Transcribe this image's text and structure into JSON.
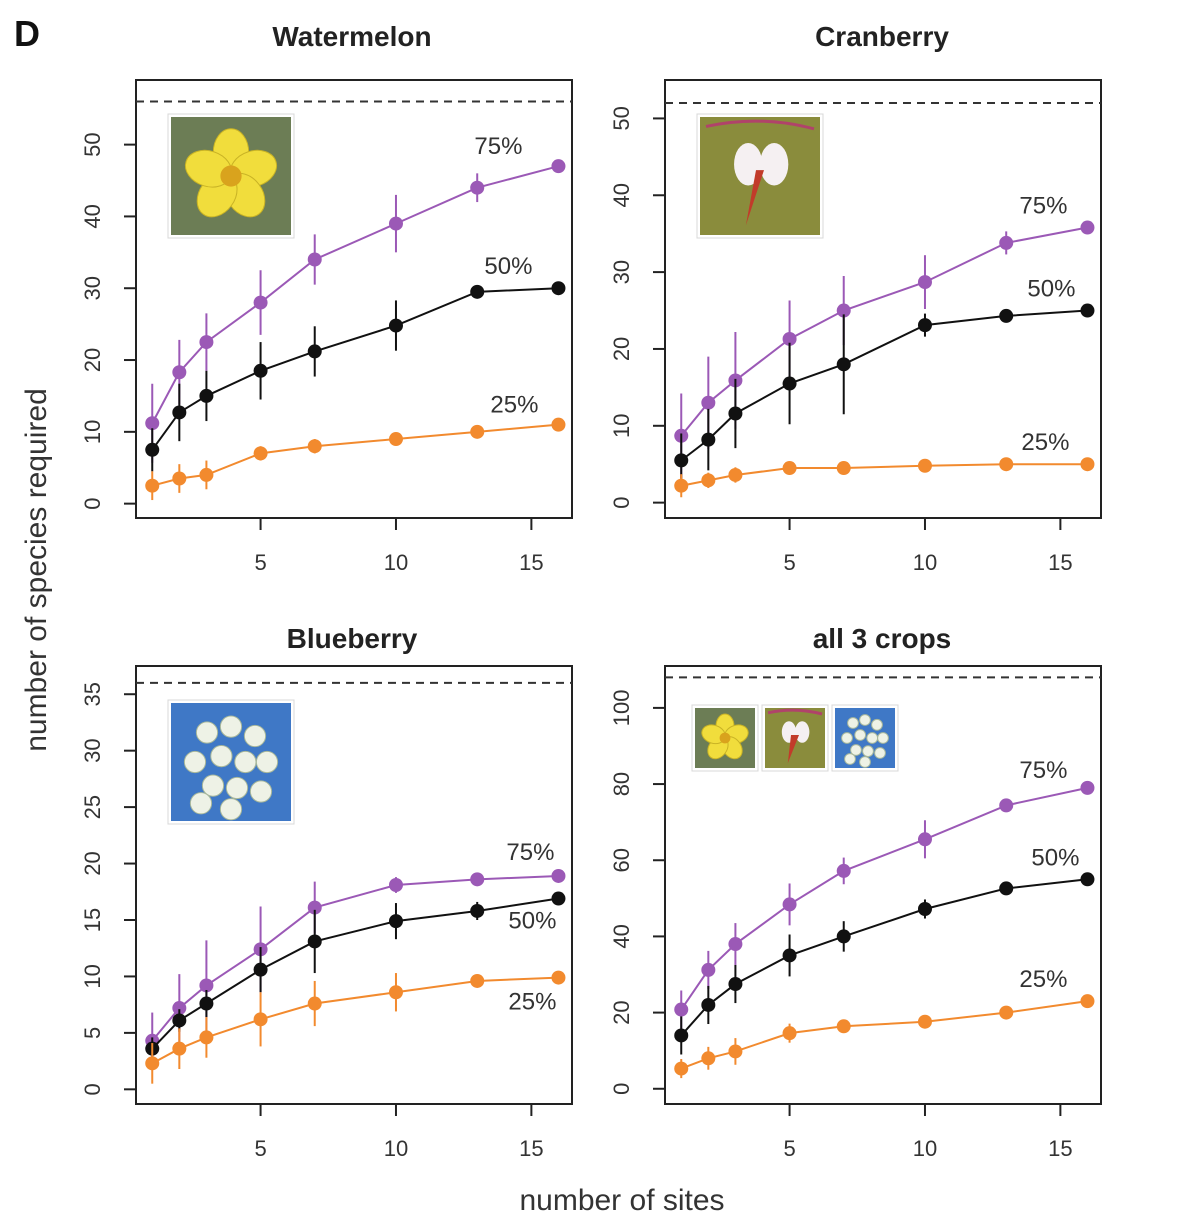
{
  "panel_letter": "D",
  "xlabel": "number of sites",
  "ylabel": "number of species required",
  "colors": {
    "75%": "#9b59b6",
    "50%": "#111111",
    "25%": "#f28a2e"
  },
  "chart_data": [
    {
      "type": "line",
      "title": "Watermelon",
      "flower_icons": [
        "watermelon-flower"
      ],
      "x": [
        1,
        2,
        3,
        5,
        7,
        10,
        13,
        16
      ],
      "xticks": [
        5,
        10,
        15
      ],
      "xlim": [
        0.4,
        16.5
      ],
      "yticks": [
        0,
        10,
        20,
        30,
        40,
        50
      ],
      "ylim": [
        -2,
        59
      ],
      "reference_line": 56,
      "series": [
        {
          "name": "75%",
          "values": [
            11.2,
            18.3,
            22.5,
            28,
            34,
            39,
            44,
            47
          ],
          "err_low": [
            5.5,
            4.5,
            4,
            4.5,
            3.5,
            4,
            2,
            0
          ],
          "err_high": [
            5.5,
            4.5,
            4,
            4.5,
            3.5,
            4,
            2,
            0
          ]
        },
        {
          "name": "50%",
          "values": [
            7.5,
            12.7,
            15,
            18.5,
            21.2,
            24.8,
            29.5,
            30
          ],
          "err_low": [
            3,
            4,
            3.5,
            4,
            3.5,
            3.5,
            0,
            0
          ],
          "err_high": [
            3,
            4,
            3.5,
            4,
            3.5,
            3.5,
            0,
            0
          ]
        },
        {
          "name": "25%",
          "values": [
            2.5,
            3.5,
            4,
            7,
            8,
            9,
            10,
            11
          ],
          "err_low": [
            2,
            2,
            2,
            1,
            1,
            0,
            0,
            0
          ],
          "err_high": [
            2,
            2,
            2,
            1,
            1,
            0,
            0,
            0
          ]
        }
      ]
    },
    {
      "type": "line",
      "title": "Cranberry",
      "flower_icons": [
        "cranberry-flower"
      ],
      "x": [
        1,
        2,
        3,
        5,
        7,
        10,
        13,
        16
      ],
      "xticks": [
        5,
        10,
        15
      ],
      "xlim": [
        0.4,
        16.5
      ],
      "yticks": [
        0,
        10,
        20,
        30,
        40,
        50
      ],
      "ylim": [
        -2,
        55
      ],
      "reference_line": 52,
      "series": [
        {
          "name": "75%",
          "values": [
            8.7,
            13,
            15.9,
            21.3,
            25,
            28.7,
            33.8,
            35.8
          ],
          "err_low": [
            5.5,
            6,
            6.3,
            5,
            4.5,
            3.5,
            1.5,
            0
          ],
          "err_high": [
            5.5,
            6,
            6.3,
            5,
            4.5,
            3.5,
            1.5,
            0
          ]
        },
        {
          "name": "50%",
          "values": [
            5.5,
            8.2,
            11.6,
            15.5,
            18,
            23.1,
            24.3,
            25
          ],
          "err_low": [
            3.5,
            4,
            4.5,
            5.3,
            6.5,
            1.5,
            0,
            0
          ],
          "err_high": [
            3.5,
            4,
            4.5,
            5.3,
            6.5,
            1.5,
            0,
            0
          ]
        },
        {
          "name": "25%",
          "values": [
            2.2,
            2.9,
            3.6,
            4.5,
            4.5,
            4.8,
            5,
            5
          ],
          "err_low": [
            1.5,
            1,
            1,
            0,
            0,
            0,
            0,
            0
          ],
          "err_high": [
            1.5,
            1,
            1,
            0,
            0,
            0,
            0,
            0
          ]
        }
      ]
    },
    {
      "type": "line",
      "title": "Blueberry",
      "flower_icons": [
        "blueberry-flower"
      ],
      "x": [
        1,
        2,
        3,
        5,
        7,
        10,
        13,
        16
      ],
      "xticks": [
        5,
        10,
        15
      ],
      "xlim": [
        0.4,
        16.5
      ],
      "yticks": [
        0,
        5,
        10,
        15,
        20,
        25,
        30,
        35
      ],
      "ylim": [
        -1.3,
        37.5
      ],
      "reference_line": 36,
      "series": [
        {
          "name": "75%",
          "values": [
            4.3,
            7.2,
            9.2,
            12.4,
            16.1,
            18.1,
            18.6,
            18.9
          ],
          "err_low": [
            2.5,
            3,
            4,
            3.8,
            2.3,
            0.7,
            0,
            0
          ],
          "err_high": [
            2.5,
            3,
            4,
            3.8,
            2.3,
            0.7,
            0,
            0
          ]
        },
        {
          "name": "50%",
          "values": [
            3.6,
            6.1,
            7.6,
            10.6,
            13.1,
            14.9,
            15.8,
            16.9
          ],
          "err_low": [
            1,
            1,
            1.2,
            2,
            2.8,
            1.6,
            0.8,
            0
          ],
          "err_high": [
            1,
            1,
            1.2,
            2,
            2.8,
            1.6,
            0.8,
            0
          ]
        },
        {
          "name": "25%",
          "values": [
            2.3,
            3.6,
            4.6,
            6.2,
            7.6,
            8.6,
            9.6,
            9.9
          ],
          "err_low": [
            1.8,
            1.8,
            1.8,
            2.4,
            2,
            1.7,
            0,
            0
          ],
          "err_high": [
            1.8,
            1.8,
            1.8,
            2.4,
            2,
            1.7,
            0,
            0
          ]
        }
      ]
    },
    {
      "type": "line",
      "title": "all 3 crops",
      "flower_icons": [
        "watermelon-flower",
        "cranberry-flower",
        "blueberry-flower"
      ],
      "x": [
        1,
        2,
        3,
        5,
        7,
        10,
        13,
        16
      ],
      "xticks": [
        5,
        10,
        15
      ],
      "xlim": [
        0.4,
        16.5
      ],
      "yticks": [
        0,
        20,
        40,
        60,
        80,
        100
      ],
      "ylim": [
        -4,
        111
      ],
      "reference_line": 108,
      "series": [
        {
          "name": "75%",
          "values": [
            20.8,
            31.2,
            38,
            48.4,
            57.2,
            65.5,
            74.4,
            79
          ],
          "err_low": [
            5,
            5,
            5.5,
            5.5,
            3.5,
            5,
            0,
            0
          ],
          "err_high": [
            5,
            5,
            5.5,
            5.5,
            3.5,
            5,
            0,
            0
          ]
        },
        {
          "name": "50%",
          "values": [
            14,
            22,
            27.5,
            35,
            40,
            47.2,
            52.6,
            55
          ],
          "err_low": [
            5,
            5,
            5,
            5.5,
            4,
            2.5,
            0,
            0
          ],
          "err_high": [
            5,
            5,
            5,
            5.5,
            4,
            2.5,
            0,
            0
          ]
        },
        {
          "name": "25%",
          "values": [
            5.3,
            8,
            9.8,
            14.6,
            16.4,
            17.6,
            20,
            23
          ],
          "err_low": [
            2.5,
            3,
            3.5,
            2.5,
            1.5,
            0,
            0,
            0
          ],
          "err_high": [
            2.5,
            3,
            3.5,
            2.5,
            1.5,
            0,
            0,
            0
          ]
        }
      ]
    }
  ]
}
